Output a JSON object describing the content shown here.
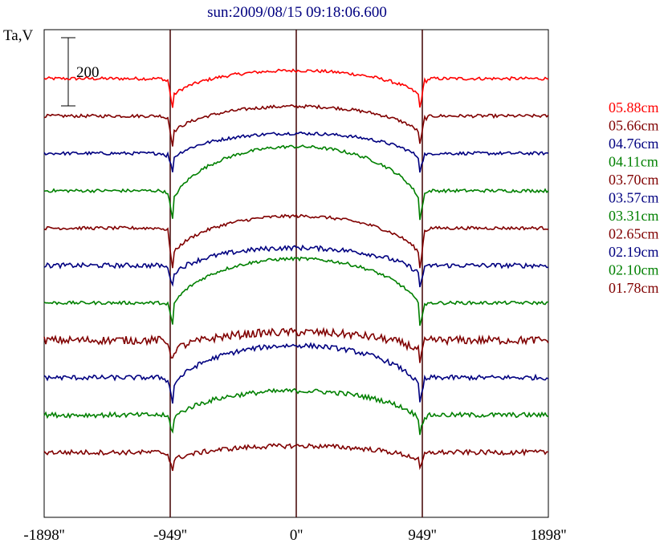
{
  "chart_data": {
    "type": "line",
    "title": "sun:2009/08/15 09:18:06.600",
    "ylabel": "Ta,V",
    "scale_bar_label": "200",
    "x_unit": "arcsec",
    "xlim": [
      -1898,
      1898
    ],
    "x_tick_labels": [
      "-1898''",
      "-949''",
      "0''",
      "949''",
      "1898''"
    ],
    "vertical_markers": [
      -949,
      0,
      949
    ],
    "series": [
      {
        "name": "05.88cm",
        "color": "#ff0000"
      },
      {
        "name": "05.66cm",
        "color": "#800000"
      },
      {
        "name": "04.76cm",
        "color": "#000080"
      },
      {
        "name": "04.11cm",
        "color": "#008000"
      },
      {
        "name": "03.70cm",
        "color": "#800000"
      },
      {
        "name": "03.57cm",
        "color": "#000080"
      },
      {
        "name": "03.31cm",
        "color": "#008000"
      },
      {
        "name": "02.65cm",
        "color": "#800000"
      },
      {
        "name": "02.19cm",
        "color": "#000080"
      },
      {
        "name": "02.10cm",
        "color": "#008000"
      },
      {
        "name": "01.78cm",
        "color": "#800000"
      }
    ],
    "profile_shape": {
      "limb_dip": [
        -30,
        -30,
        -15,
        -30,
        -45,
        -20,
        -20,
        -20,
        -25,
        -15,
        -15
      ],
      "center_rise": [
        10,
        12,
        25,
        55,
        15,
        22,
        55,
        10,
        40,
        30,
        8
      ],
      "noise": [
        2,
        2,
        2,
        2,
        2,
        3,
        2,
        5,
        3,
        3,
        3
      ]
    }
  }
}
